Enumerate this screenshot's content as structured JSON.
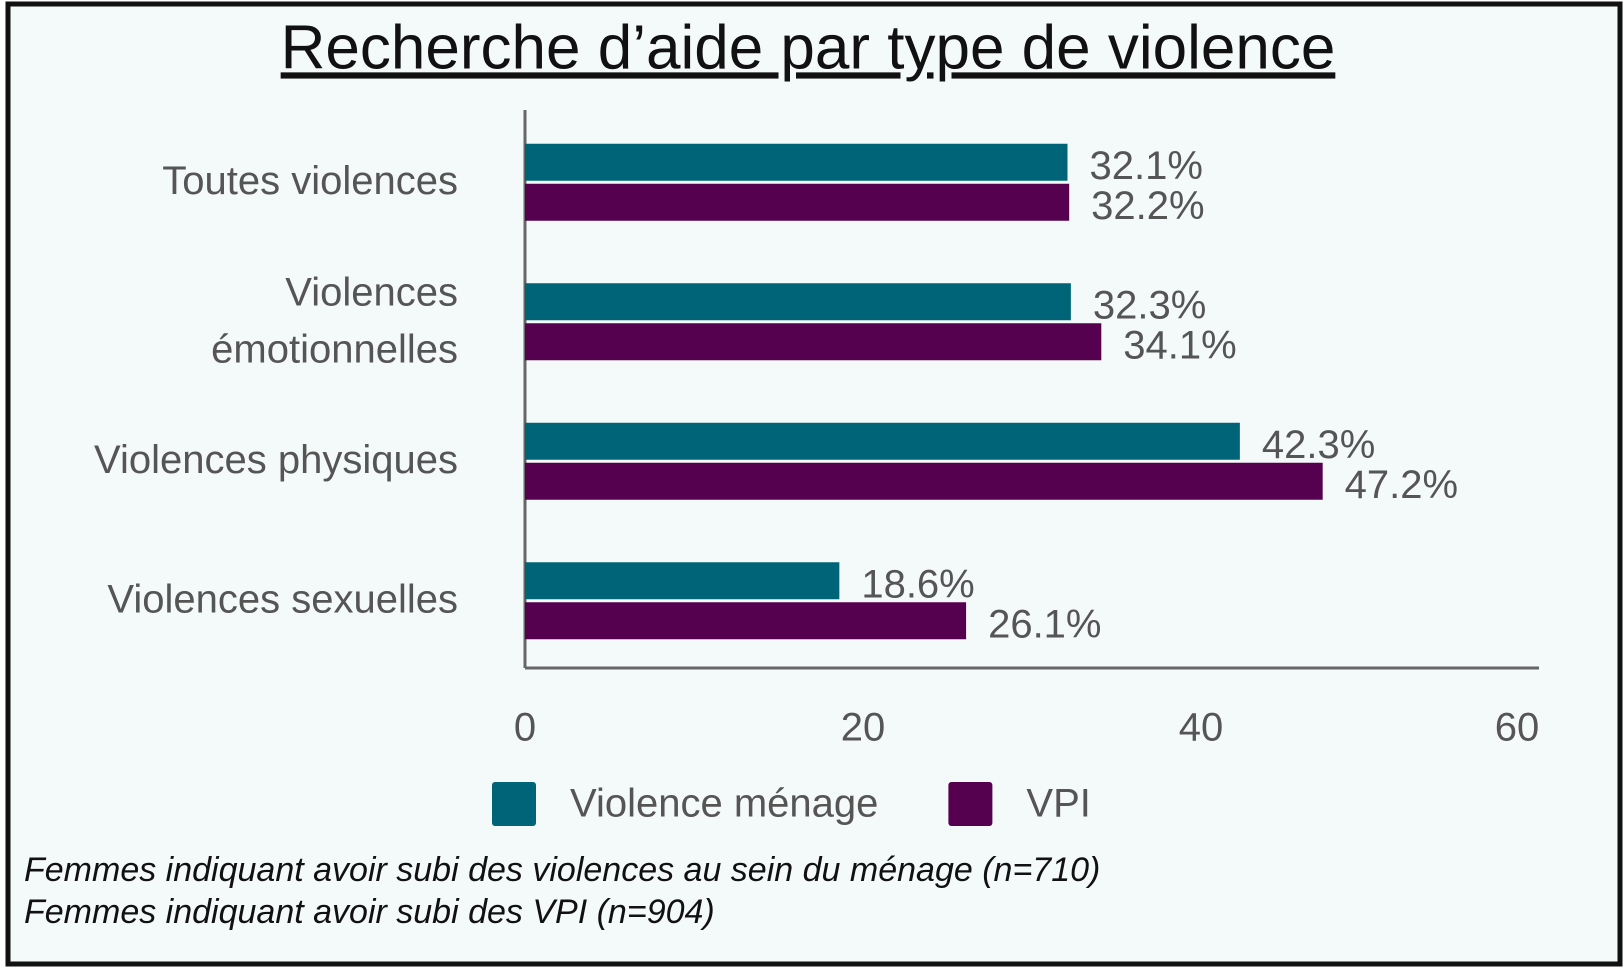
{
  "chart_data": {
    "type": "bar",
    "orientation": "horizontal",
    "title": "Recherche d’aide par type de violence",
    "categories": [
      "Toutes violences",
      "Violences\némotionnelles",
      "Violences physiques",
      "Violences sexuelles"
    ],
    "series": [
      {
        "name": "Violence ménage",
        "color": "#006478",
        "values": [
          32.1,
          32.3,
          42.3,
          18.6
        ],
        "value_labels": [
          "32.1%",
          "32.3%",
          "42.3%",
          "18.6%"
        ]
      },
      {
        "name": "VPI",
        "color": "#560050",
        "values": [
          32.2,
          34.1,
          47.2,
          26.1
        ],
        "value_labels": [
          "32.2%",
          "34.1%",
          "47.2%",
          "26.1%"
        ]
      }
    ],
    "xlim": [
      0,
      60
    ],
    "xticks": [
      0,
      20,
      40,
      60
    ],
    "grid": false,
    "legend": "bottom",
    "annotations": [
      "Femmes indiquant avoir subi des violences au sein du ménage (n=710)",
      "Femmes indiquant avoir subi des VPI (n=904)"
    ]
  }
}
